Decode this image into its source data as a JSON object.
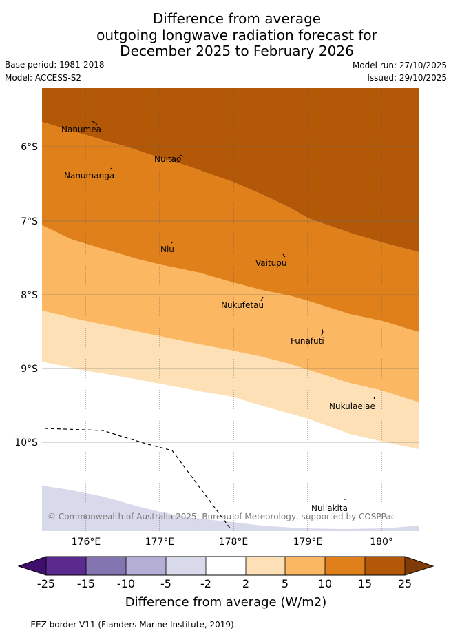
{
  "title": {
    "line1": "Difference from average",
    "line2": "outgoing longwave radiation forecast for",
    "line3": "December 2025 to February 2026"
  },
  "meta": {
    "base_period": "Base period: 1981-2018",
    "model": "Model: ACCESS-S2",
    "model_run": "Model run: 27/10/2025",
    "issued": "Issued: 29/10/2025"
  },
  "map": {
    "lat_labels": [
      "6°S",
      "7°S",
      "8°S",
      "9°S",
      "10°S"
    ],
    "lon_labels": [
      "176°E",
      "177°E",
      "178°E",
      "179°E",
      "180°"
    ],
    "islands": [
      "Nanumea",
      "Nuitao",
      "Nanumanga",
      "Niu",
      "Vaitupu",
      "Nukufetau",
      "Funafuti",
      "Nukulaelae",
      "Nuilakita"
    ],
    "copyright": "© Commonwealth of Australia 2025, Bureau of Meteorology, supported by COSPPac"
  },
  "colorbar": {
    "ticks": [
      "-25",
      "-15",
      "-10",
      "-5",
      "-2",
      "2",
      "5",
      "10",
      "15",
      "25"
    ],
    "colors": [
      "#3f0f6e",
      "#5a2a8e",
      "#8375b0",
      "#b4add4",
      "#d8d9ea",
      "#ffffff",
      "#fde0b6",
      "#fbb762",
      "#e0801a",
      "#b35806",
      "#7f3b08"
    ],
    "label": "Difference from average (W/m2)"
  },
  "legend": {
    "eez": "-- -- -- EEZ border V11 (Flanders Marine Institute, 2019)."
  }
}
